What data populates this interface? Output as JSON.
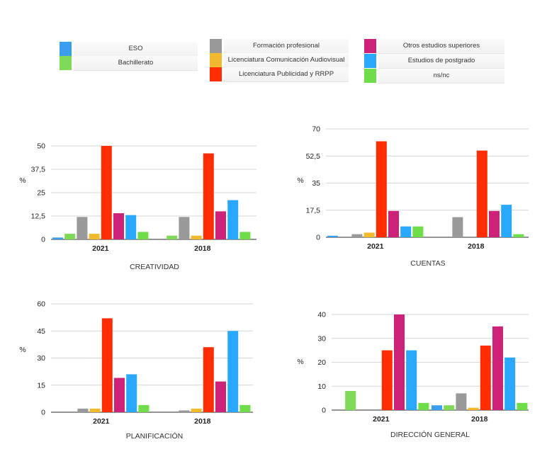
{
  "legend": [
    {
      "label": "ESO",
      "color": "#3a9ef0"
    },
    {
      "label": "Bachillerato",
      "color": "#7ed957"
    },
    {
      "label": "Formación profesional",
      "color": "#999999"
    },
    {
      "label": "Licenciatura Comunicación Audiovisual",
      "color": "#f1b92e"
    },
    {
      "label": "Licenciatura Publicidad y RRPP",
      "color": "#ff2d00"
    },
    {
      "label": "Otros estudios superiores",
      "color": "#cc2277"
    },
    {
      "label": "Estudios de postgrado",
      "color": "#2aa8ff"
    },
    {
      "label": "ns/nc",
      "color": "#6fdc4a"
    }
  ],
  "chart_data": [
    {
      "type": "bar",
      "title": "CREATIVIDAD",
      "ylabel": "%",
      "ylim": [
        0,
        50
      ],
      "yticks": [
        "0",
        "12,5",
        "25",
        "37,5",
        "50"
      ],
      "categories": [
        "2021",
        "2018"
      ],
      "series": [
        {
          "name": "ESO",
          "values": [
            1,
            0
          ]
        },
        {
          "name": "Bachillerato",
          "values": [
            3,
            2
          ]
        },
        {
          "name": "Formación profesional",
          "values": [
            12,
            12
          ]
        },
        {
          "name": "Licenciatura Comunicación Audiovisual",
          "values": [
            3,
            2
          ]
        },
        {
          "name": "Licenciatura Publicidad y RRPP",
          "values": [
            50,
            46
          ]
        },
        {
          "name": "Otros estudios superiores",
          "values": [
            14,
            15
          ]
        },
        {
          "name": "Estudios de postgrado",
          "values": [
            13,
            21
          ]
        },
        {
          "name": "ns/nc",
          "values": [
            4,
            4
          ]
        }
      ]
    },
    {
      "type": "bar",
      "title": "CUENTAS",
      "ylabel": "%",
      "ylim": [
        0,
        70
      ],
      "yticks": [
        "0",
        "17,5",
        "35",
        "52,5",
        "70"
      ],
      "categories": [
        "2021",
        "2018"
      ],
      "series": [
        {
          "name": "ESO",
          "values": [
            1,
            0
          ]
        },
        {
          "name": "Bachillerato",
          "values": [
            0,
            0
          ]
        },
        {
          "name": "Formación profesional",
          "values": [
            2,
            13
          ]
        },
        {
          "name": "Licenciatura Comunicación Audiovisual",
          "values": [
            3,
            0
          ]
        },
        {
          "name": "Licenciatura Publicidad y RRPP",
          "values": [
            62,
            56
          ]
        },
        {
          "name": "Otros estudios superiores",
          "values": [
            17,
            17
          ]
        },
        {
          "name": "Estudios de postgrado",
          "values": [
            7,
            21
          ]
        },
        {
          "name": "ns/nc",
          "values": [
            7,
            2
          ]
        }
      ]
    },
    {
      "type": "bar",
      "title": "PLANIFICACIÓN",
      "ylabel": "%",
      "ylim": [
        0,
        60
      ],
      "yticks": [
        "0",
        "15",
        "30",
        "45",
        "60"
      ],
      "categories": [
        "2021",
        "2018"
      ],
      "series": [
        {
          "name": "ESO",
          "values": [
            0,
            0
          ]
        },
        {
          "name": "Bachillerato",
          "values": [
            0,
            0
          ]
        },
        {
          "name": "Formación profesional",
          "values": [
            2,
            1
          ]
        },
        {
          "name": "Licenciatura Comunicación Audiovisual",
          "values": [
            2,
            2
          ]
        },
        {
          "name": "Licenciatura Publicidad y RRPP",
          "values": [
            52,
            36
          ]
        },
        {
          "name": "Otros estudios superiores",
          "values": [
            19,
            17
          ]
        },
        {
          "name": "Estudios de postgrado",
          "values": [
            21,
            45
          ]
        },
        {
          "name": "ns/nc",
          "values": [
            4,
            4
          ]
        }
      ]
    },
    {
      "type": "bar",
      "title": "DIRECCIÓN GENERAL",
      "ylabel": "%",
      "ylim": [
        0,
        40
      ],
      "yticks": [
        "0",
        "10",
        "20",
        "30",
        "40"
      ],
      "categories": [
        "2021",
        "2018"
      ],
      "series": [
        {
          "name": "ESO",
          "values": [
            0,
            2
          ]
        },
        {
          "name": "Bachillerato",
          "values": [
            8,
            2
          ]
        },
        {
          "name": "Formación profesional",
          "values": [
            0,
            7
          ]
        },
        {
          "name": "Licenciatura Comunicación Audiovisual",
          "values": [
            0,
            1
          ]
        },
        {
          "name": "Licenciatura Publicidad y RRPP",
          "values": [
            25,
            27
          ]
        },
        {
          "name": "Otros estudios superiores",
          "values": [
            40,
            35
          ]
        },
        {
          "name": "Estudios de postgrado",
          "values": [
            25,
            22
          ]
        },
        {
          "name": "ns/nc",
          "values": [
            3,
            3
          ]
        }
      ]
    }
  ]
}
